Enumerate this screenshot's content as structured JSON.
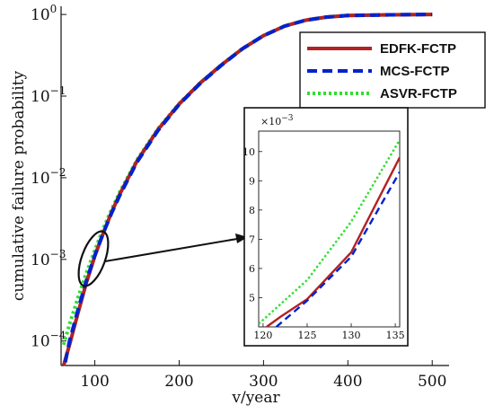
{
  "chart_data": [
    {
      "type": "line",
      "xlabel": "v/year",
      "ylabel": "cumulative failure probability",
      "xlim": [
        60,
        520
      ],
      "ylim_log10": [
        -4.3,
        0.1
      ],
      "y_scale": "log",
      "x_ticks": [
        {
          "value": 100,
          "label": "100"
        },
        {
          "value": 200,
          "label": "200"
        },
        {
          "value": 300,
          "label": "300"
        },
        {
          "value": 400,
          "label": "400"
        },
        {
          "value": 500,
          "label": "500"
        }
      ],
      "y_ticks": [
        {
          "exp": -4,
          "label": "10",
          "sup": "−4"
        },
        {
          "exp": -3,
          "label": "10",
          "sup": "−3"
        },
        {
          "exp": -2,
          "label": "10",
          "sup": "−2"
        },
        {
          "exp": -1,
          "label": "10",
          "sup": "−1"
        },
        {
          "exp": 0,
          "label": "10",
          "sup": "0"
        }
      ],
      "grid": false,
      "legend_position": "top-right",
      "series": [
        {
          "name": "EDFK-FCTP",
          "color": "#b22222",
          "dash": "solid",
          "points": [
            [
              63,
              5e-05
            ],
            [
              70,
              9e-05
            ],
            [
              80,
              0.00022
            ],
            [
              90,
              0.00052
            ],
            [
              100,
              0.0011
            ],
            [
              110,
              0.0021
            ],
            [
              120,
              0.0038
            ],
            [
              130,
              0.0064
            ],
            [
              150,
              0.016
            ],
            [
              175,
              0.039
            ],
            [
              200,
              0.08
            ],
            [
              225,
              0.145
            ],
            [
              250,
              0.24
            ],
            [
              275,
              0.38
            ],
            [
              300,
              0.55
            ],
            [
              325,
              0.72
            ],
            [
              350,
              0.85
            ],
            [
              375,
              0.93
            ],
            [
              400,
              0.97
            ],
            [
              450,
              0.99
            ],
            [
              500,
              1.0
            ]
          ]
        },
        {
          "name": "MCS-FCTP",
          "color": "#0022cc",
          "dash": "dashed",
          "points": [
            [
              65,
              5.5e-05
            ],
            [
              70,
              0.0001
            ],
            [
              80,
              0.00024
            ],
            [
              90,
              0.00055
            ],
            [
              100,
              0.00112
            ],
            [
              110,
              0.0021
            ],
            [
              120,
              0.0037
            ],
            [
              130,
              0.0062
            ],
            [
              150,
              0.0155
            ],
            [
              175,
              0.038
            ],
            [
              200,
              0.079
            ],
            [
              225,
              0.143
            ],
            [
              250,
              0.238
            ],
            [
              275,
              0.38
            ],
            [
              300,
              0.55
            ],
            [
              325,
              0.72
            ],
            [
              350,
              0.85
            ],
            [
              375,
              0.93
            ],
            [
              400,
              0.97
            ],
            [
              450,
              0.99
            ],
            [
              500,
              1.0
            ]
          ]
        },
        {
          "name": "ASVR-FCTP",
          "color": "#33dd33",
          "dash": "dotted",
          "points": [
            [
              63,
              9e-05
            ],
            [
              70,
              0.00016
            ],
            [
              80,
              0.00034
            ],
            [
              90,
              0.00068
            ],
            [
              100,
              0.0013
            ],
            [
              110,
              0.0024
            ],
            [
              120,
              0.0041
            ],
            [
              130,
              0.0068
            ],
            [
              150,
              0.0165
            ],
            [
              175,
              0.04
            ],
            [
              200,
              0.081
            ],
            [
              225,
              0.146
            ],
            [
              250,
              0.242
            ],
            [
              275,
              0.382
            ],
            [
              300,
              0.552
            ],
            [
              325,
              0.722
            ],
            [
              350,
              0.852
            ],
            [
              375,
              0.932
            ],
            [
              400,
              0.972
            ],
            [
              450,
              0.99
            ],
            [
              500,
              1.0
            ]
          ]
        }
      ]
    },
    {
      "type": "line",
      "role": "inset",
      "xlim": [
        119.5,
        135.5
      ],
      "ylim": [
        4.0,
        10.7
      ],
      "y_multiplier": "×10",
      "y_multiplier_sup": "−3",
      "x_ticks": [
        120,
        125,
        130,
        135
      ],
      "y_ticks": [
        5,
        6,
        7,
        8,
        9,
        10
      ],
      "series": [
        {
          "name": "EDFK-FCTP",
          "color": "#b22222",
          "dash": "solid",
          "points": [
            [
              120.4,
              4.0
            ],
            [
              122,
              4.35
            ],
            [
              125,
              4.95
            ],
            [
              130,
              6.55
            ],
            [
              135.5,
              9.8
            ]
          ]
        },
        {
          "name": "MCS-FCTP",
          "color": "#0022cc",
          "dash": "dashed",
          "points": [
            [
              121.5,
              4.0
            ],
            [
              125,
              4.9
            ],
            [
              130,
              6.4
            ],
            [
              135.5,
              9.3
            ]
          ]
        },
        {
          "name": "ASVR-FCTP",
          "color": "#33dd33",
          "dash": "dotted",
          "points": [
            [
              119.5,
              4.1
            ],
            [
              125,
              5.6
            ],
            [
              130,
              7.6
            ],
            [
              135.5,
              10.4
            ]
          ]
        }
      ]
    }
  ]
}
